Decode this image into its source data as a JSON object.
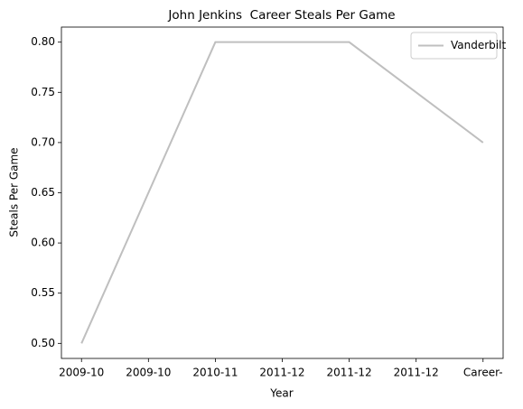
{
  "chart_data": {
    "type": "line",
    "title": "John Jenkins  Career Steals Per Game",
    "xlabel": "Year",
    "ylabel": "Steals Per Game",
    "x": [
      0,
      2,
      4,
      6
    ],
    "series": [
      {
        "name": "Vanderbilt",
        "color": "#bfbfbf",
        "values": [
          0.5,
          0.8,
          0.8,
          0.7
        ]
      }
    ],
    "xlim": [
      -0.3,
      6.3
    ],
    "xticks": [
      {
        "value": 0,
        "label": "2009-10"
      },
      {
        "value": 1,
        "label": "2009-10"
      },
      {
        "value": 2,
        "label": "2010-11"
      },
      {
        "value": 3,
        "label": "2011-12"
      },
      {
        "value": 4,
        "label": "2011-12"
      },
      {
        "value": 5,
        "label": "2011-12"
      },
      {
        "value": 6,
        "label": "Career-"
      }
    ],
    "ylim": [
      0.485,
      0.815
    ],
    "yticks": [
      {
        "value": 0.5,
        "label": "0.50"
      },
      {
        "value": 0.55,
        "label": "0.55"
      },
      {
        "value": 0.6,
        "label": "0.60"
      },
      {
        "value": 0.65,
        "label": "0.65"
      },
      {
        "value": 0.7,
        "label": "0.70"
      },
      {
        "value": 0.75,
        "label": "0.75"
      },
      {
        "value": 0.8,
        "label": "0.80"
      }
    ],
    "grid": false,
    "legend": "upper right"
  }
}
